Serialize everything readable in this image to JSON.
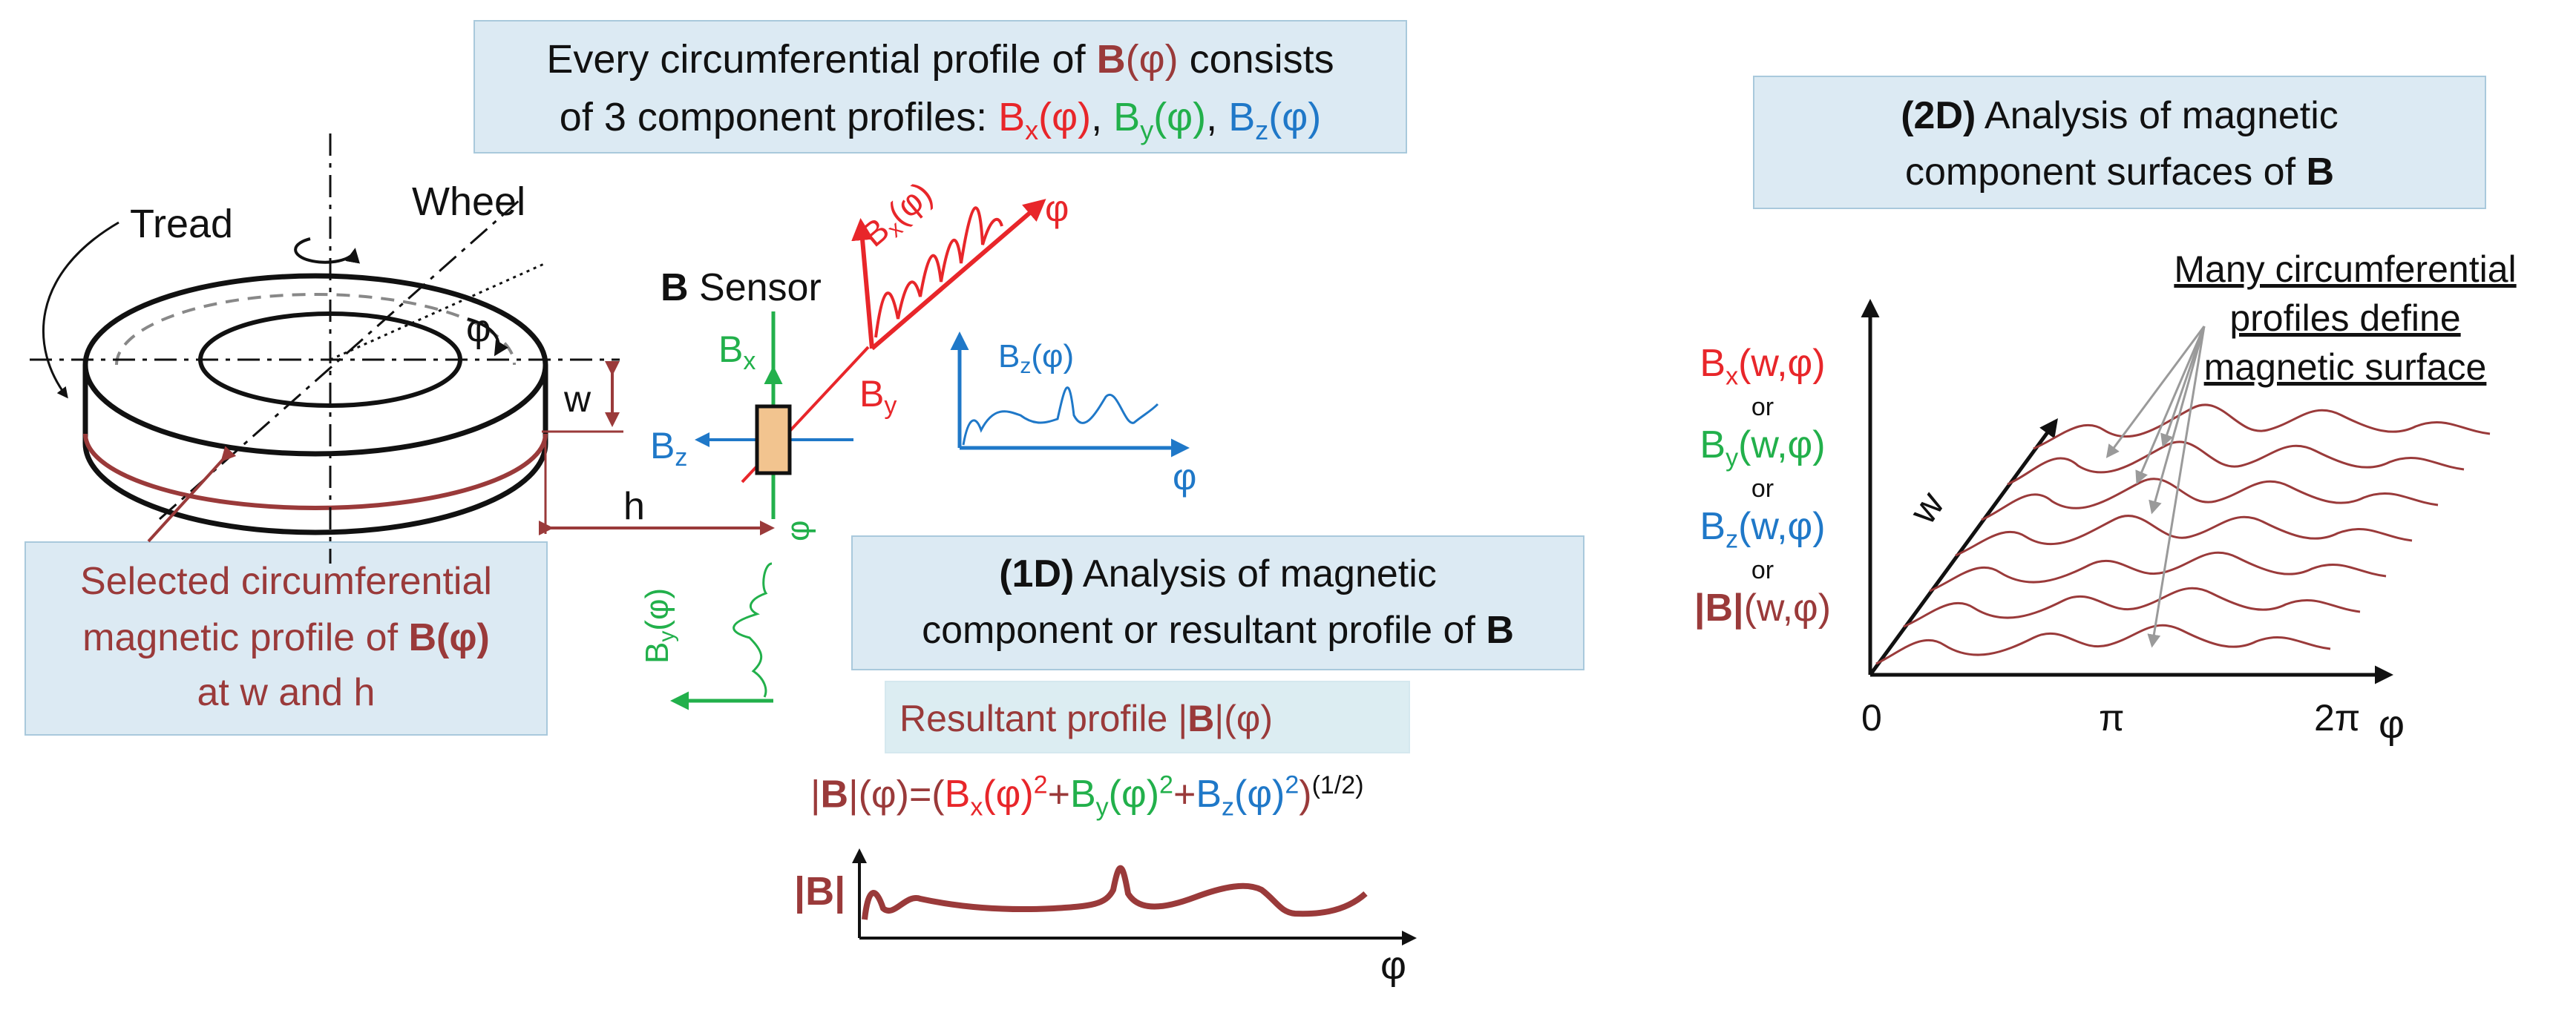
{
  "colors": {
    "brown": "#9a3a3a",
    "red": "#e8262a",
    "green": "#22b04b",
    "blue": "#1f78c8",
    "box_fill": "#dceaf3",
    "box_border": "#a9c9dc",
    "sensor_fill": "#f2c48f"
  },
  "top_box": {
    "line1_pre": "Every circumferential profile of ",
    "line1_B": "B",
    "line1_phi": "(φ)",
    "line1_post": " consists",
    "line2_pre": "of 3 component profiles:  ",
    "bx_main": "B",
    "bx_sub": "x",
    "bx_arg": "(φ)",
    "sep1": ", ",
    "by_main": "B",
    "by_sub": "y",
    "by_arg": "(φ)",
    "sep2": ", ",
    "bz_main": "B",
    "bz_sub": "z",
    "bz_arg": "(φ)"
  },
  "wheel": {
    "tread_label": "Tread",
    "wheel_label": "Wheel",
    "phi_label": "φ",
    "w_label": "w",
    "h_label": "h"
  },
  "selected_box": {
    "line1": "Selected circumferential",
    "line2_pre": "magnetic profile of ",
    "line2_B": "B",
    "line2_phi": "(φ)",
    "line3": "at w and h"
  },
  "sensor": {
    "title_B": "B",
    "title_rest": " Sensor",
    "bx_main": "B",
    "bx_sub": "x",
    "by_main": "B",
    "by_sub": "y",
    "bz_main": "B",
    "bz_sub": "z",
    "phi_vertical": "φ"
  },
  "bx_plot": {
    "main": "B",
    "sub": "x",
    "arg": "(φ)",
    "axis_label": "φ"
  },
  "bz_plot": {
    "main": "B",
    "sub": "z",
    "arg": "(φ)",
    "axis_label": "φ"
  },
  "by_plot": {
    "main": "B",
    "sub": "y",
    "arg": "(φ)"
  },
  "box_1d": {
    "bold": "(1D)",
    "line1_rest": " Analysis of magnetic",
    "line2_pre": "component or resultant profile of ",
    "line2_B": "B"
  },
  "resultant_box": {
    "pre": "Resultant profile |",
    "B": "B",
    "post": "|(φ)"
  },
  "formula": {
    "lhs_bar1": "|",
    "lhs_B": "B",
    "lhs_rest": "|(φ)=(",
    "bx": "B",
    "bx_sub": "x",
    "bx_arg": "(φ)",
    "sq": "2",
    "plus": "+",
    "by": "B",
    "by_sub": "y",
    "by_arg": "(φ)",
    "bz": "B",
    "bz_sub": "z",
    "bz_arg": "(φ)",
    "close": ")",
    "exp": "(1/2)"
  },
  "resultant_plot": {
    "ylabel_bar1": "|",
    "ylabel_B": "B",
    "ylabel_bar2": "|",
    "axis_label": "φ"
  },
  "box_2d": {
    "bold": "(2D)",
    "line1_rest": " Analysis of magnetic",
    "line2_pre": "component surfaces of ",
    "line2_B": "B"
  },
  "surface_note": {
    "line1": "Many circumferential",
    "line2": "profiles define",
    "line3": "magnetic surface"
  },
  "surface_labels": {
    "bx_main": "B",
    "bx_sub": "x",
    "bx_arg": "(w,φ)",
    "or1": "or",
    "by_main": "B",
    "by_sub": "y",
    "by_arg": "(w,φ)",
    "or2": "or",
    "bz_main": "B",
    "bz_sub": "z",
    "bz_arg": "(w,φ)",
    "or3": "or",
    "abs_pre": "|",
    "abs_B": "B",
    "abs_post": "|",
    "abs_arg": "(w,φ)"
  },
  "surface_axes": {
    "w_label": "w",
    "tick_0": "0",
    "tick_pi": "π",
    "tick_2pi": "2π",
    "x_label": "φ"
  }
}
